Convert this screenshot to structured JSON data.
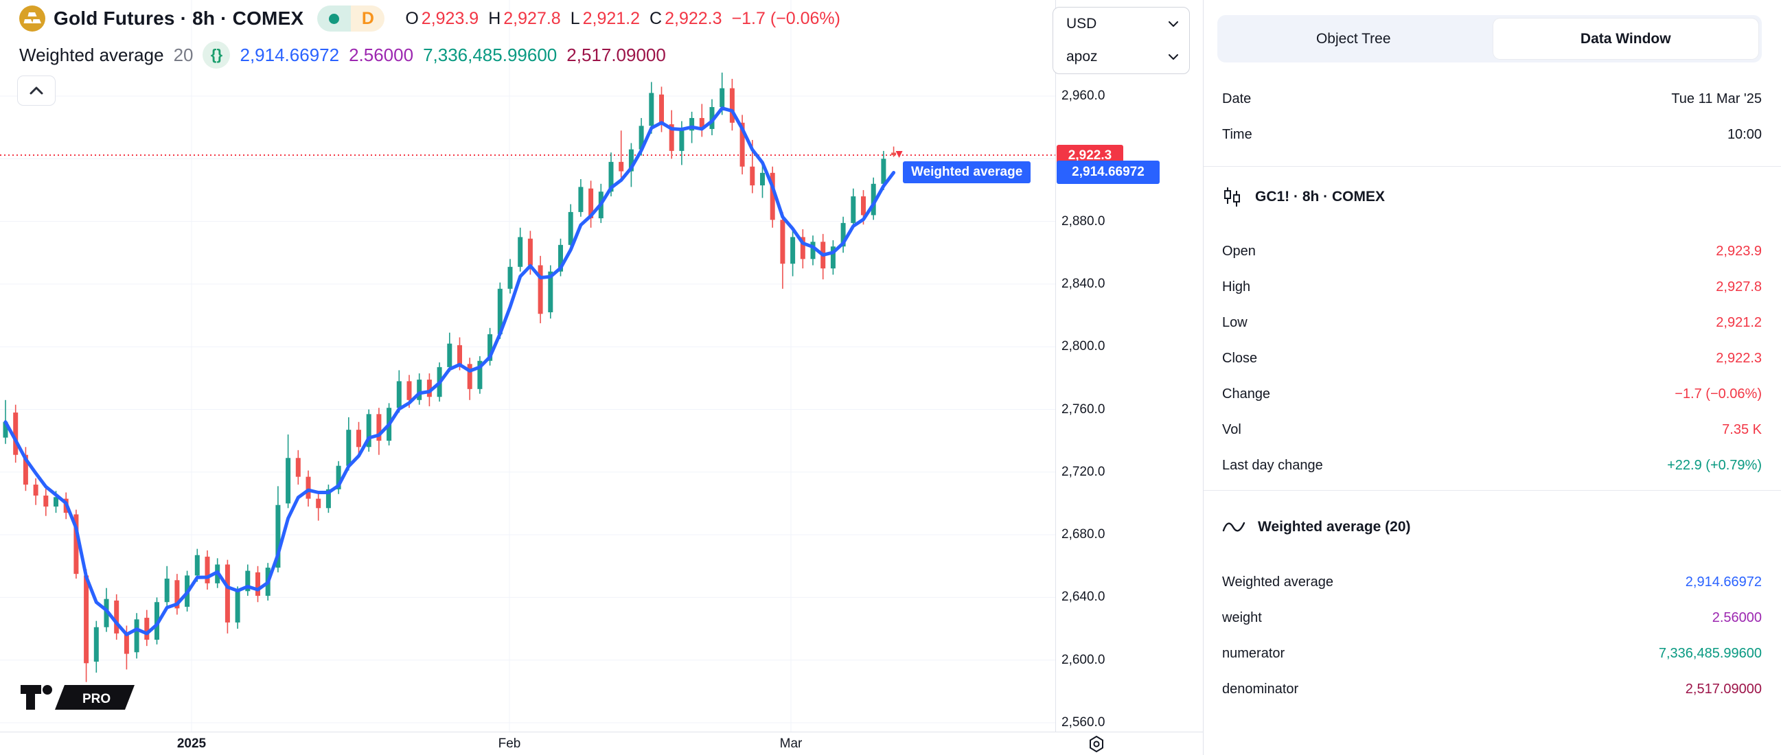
{
  "colors": {
    "candle_up": "#1f9d8b",
    "candle_down": "#ef5350",
    "line_blue": "#2962ff",
    "text_red": "#f23645",
    "text_green": "#089981",
    "text_purple": "#9c27b0",
    "text_maroon": "#9c1348",
    "text_dark": "#131722",
    "text_gray": "#787b86",
    "grid": "#f0f3fa",
    "border": "#e0e3eb",
    "badge_dot_teal": "#149980",
    "badge_d_orange": "#f7941d",
    "logo_gold": "#d9a127"
  },
  "legend": {
    "symbol_title": "Gold Futures · 8h · COMEX",
    "interval_badge": "D",
    "ohlc": [
      {
        "label": "O",
        "value": "2,923.9"
      },
      {
        "label": "H",
        "value": "2,927.8"
      },
      {
        "label": "L",
        "value": "2,921.2"
      },
      {
        "label": "C",
        "value": "2,922.3"
      }
    ],
    "change": "−1.7 (−0.06%)",
    "indicator_name": "Weighted average",
    "indicator_param": "20",
    "indicator_icon": "{}",
    "indicator_values": [
      {
        "value": "2,914.66972",
        "clr": "blue"
      },
      {
        "value": "2.56000",
        "clr": "purple"
      },
      {
        "value": "7,336,485.99600",
        "clr": "green"
      },
      {
        "value": "2,517.09000",
        "clr": "maroon"
      }
    ]
  },
  "currency_selectors": [
    {
      "value": "USD"
    },
    {
      "value": "apoz"
    }
  ],
  "wma_tag_label": "Weighted average",
  "price_tags": {
    "last_price": "2,922.3",
    "indicator_price": "2,914.66972"
  },
  "watermark": {
    "pro_label": "PRO"
  },
  "panel": {
    "tabs": [
      {
        "label": "Object Tree"
      },
      {
        "label": "Data Window"
      }
    ],
    "active_tab": "Data Window",
    "info_rows": [
      {
        "label": "Date",
        "value": "Tue 11 Mar '25",
        "clr": "dark"
      },
      {
        "label": "Time",
        "value": "10:00",
        "clr": "dark"
      }
    ],
    "symbol_section": {
      "title": "GC1! · 8h · COMEX",
      "rows": [
        {
          "label": "Open",
          "value": "2,923.9",
          "clr": "red"
        },
        {
          "label": "High",
          "value": "2,927.8",
          "clr": "red"
        },
        {
          "label": "Low",
          "value": "2,921.2",
          "clr": "red"
        },
        {
          "label": "Close",
          "value": "2,922.3",
          "clr": "red"
        },
        {
          "label": "Change",
          "value": "−1.7 (−0.06%)",
          "clr": "red"
        },
        {
          "label": "Vol",
          "value": "7.35 K",
          "clr": "red"
        },
        {
          "label": "Last day change",
          "value": "+22.9 (+0.79%)",
          "clr": "green"
        }
      ]
    },
    "indicator_section": {
      "title": "Weighted average (20)",
      "rows": [
        {
          "label": "Weighted average",
          "value": "2,914.66972",
          "clr": "blue"
        },
        {
          "label": "weight",
          "value": "2.56000",
          "clr": "purple"
        },
        {
          "label": "numerator",
          "value": "7,336,485.99600",
          "clr": "green"
        },
        {
          "label": "denominator",
          "value": "2,517.09000",
          "clr": "maroon"
        }
      ]
    }
  },
  "chart_data": {
    "type": "candlestick",
    "title": "GC1! Gold Futures · 8h · COMEX with Weighted average (20) overlay",
    "ylim": [
      2556,
      2980
    ],
    "y_ticks": [
      2960,
      2920,
      2880,
      2840,
      2800,
      2760,
      2720,
      2680,
      2640,
      2600,
      2560
    ],
    "y_tick_labels": [
      "2,960.0",
      "2,920.0",
      "2,880.0",
      "2,840.0",
      "2,800.0",
      "2,760.0",
      "2,720.0",
      "2,680.0",
      "2,640.0",
      "2,600.0",
      "2,560.0"
    ],
    "x_ticks": [
      {
        "text": "2025",
        "x": 279,
        "bold": true
      },
      {
        "text": "Feb",
        "x": 742,
        "bold": false
      },
      {
        "text": "Mar",
        "x": 1152,
        "bold": false
      }
    ],
    "last_price": 2922.3,
    "indicator": {
      "name": "Weighted average",
      "length": 20,
      "last_value": 2914.66972,
      "draw_window": 5
    },
    "candles": [
      [
        2742,
        2766,
        2738,
        2752
      ],
      [
        2758,
        2763,
        2726,
        2731
      ],
      [
        2731,
        2736,
        2708,
        2712
      ],
      [
        2712,
        2716,
        2699,
        2705
      ],
      [
        2705,
        2710,
        2692,
        2698
      ],
      [
        2698,
        2708,
        2694,
        2704
      ],
      [
        2703,
        2707,
        2690,
        2694
      ],
      [
        2693,
        2696,
        2652,
        2655
      ],
      [
        2654,
        2658,
        2586,
        2598
      ],
      [
        2599,
        2625,
        2592,
        2621
      ],
      [
        2621,
        2646,
        2618,
        2639
      ],
      [
        2638,
        2642,
        2613,
        2617
      ],
      [
        2617,
        2622,
        2594,
        2604
      ],
      [
        2605,
        2630,
        2601,
        2626
      ],
      [
        2627,
        2632,
        2609,
        2613
      ],
      [
        2613,
        2640,
        2610,
        2637
      ],
      [
        2637,
        2660,
        2634,
        2652
      ],
      [
        2651,
        2655,
        2629,
        2633
      ],
      [
        2634,
        2657,
        2631,
        2654
      ],
      [
        2654,
        2671,
        2650,
        2667
      ],
      [
        2666,
        2670,
        2645,
        2649
      ],
      [
        2649,
        2665,
        2646,
        2661
      ],
      [
        2661,
        2664,
        2617,
        2624
      ],
      [
        2624,
        2647,
        2620,
        2644
      ],
      [
        2644,
        2661,
        2641,
        2657
      ],
      [
        2656,
        2660,
        2637,
        2641
      ],
      [
        2641,
        2662,
        2638,
        2659
      ],
      [
        2659,
        2711,
        2656,
        2699
      ],
      [
        2700,
        2744,
        2697,
        2729
      ],
      [
        2729,
        2734,
        2712,
        2717
      ],
      [
        2717,
        2721,
        2698,
        2703
      ],
      [
        2703,
        2707,
        2689,
        2697
      ],
      [
        2697,
        2712,
        2694,
        2709
      ],
      [
        2709,
        2727,
        2706,
        2724
      ],
      [
        2724,
        2755,
        2721,
        2747
      ],
      [
        2747,
        2752,
        2731,
        2736
      ],
      [
        2736,
        2760,
        2733,
        2757
      ],
      [
        2757,
        2761,
        2731,
        2740
      ],
      [
        2740,
        2764,
        2737,
        2761
      ],
      [
        2761,
        2785,
        2758,
        2778
      ],
      [
        2778,
        2782,
        2761,
        2766
      ],
      [
        2766,
        2783,
        2763,
        2779
      ],
      [
        2779,
        2783,
        2762,
        2768
      ],
      [
        2768,
        2790,
        2765,
        2787
      ],
      [
        2787,
        2809,
        2784,
        2802
      ],
      [
        2801,
        2806,
        2785,
        2789
      ],
      [
        2789,
        2793,
        2766,
        2773
      ],
      [
        2773,
        2794,
        2770,
        2791
      ],
      [
        2791,
        2812,
        2788,
        2808
      ],
      [
        2808,
        2841,
        2805,
        2837
      ],
      [
        2837,
        2856,
        2834,
        2851
      ],
      [
        2851,
        2876,
        2848,
        2870
      ],
      [
        2869,
        2874,
        2846,
        2852
      ],
      [
        2852,
        2858,
        2815,
        2821
      ],
      [
        2822,
        2852,
        2818,
        2848
      ],
      [
        2848,
        2869,
        2845,
        2865
      ],
      [
        2865,
        2891,
        2862,
        2886
      ],
      [
        2886,
        2907,
        2883,
        2902
      ],
      [
        2901,
        2906,
        2876,
        2882
      ],
      [
        2882,
        2904,
        2879,
        2899
      ],
      [
        2899,
        2924,
        2896,
        2918
      ],
      [
        2918,
        2938,
        2908,
        2912
      ],
      [
        2912,
        2930,
        2902,
        2926
      ],
      [
        2926,
        2946,
        2922,
        2941
      ],
      [
        2941,
        2969,
        2936,
        2962
      ],
      [
        2961,
        2966,
        2937,
        2942
      ],
      [
        2942,
        2951,
        2920,
        2925
      ],
      [
        2925,
        2944,
        2916,
        2938
      ],
      [
        2938,
        2950,
        2930,
        2946
      ],
      [
        2946,
        2955,
        2934,
        2939
      ],
      [
        2939,
        2958,
        2935,
        2953
      ],
      [
        2953,
        2975,
        2948,
        2965
      ],
      [
        2965,
        2971,
        2938,
        2943
      ],
      [
        2943,
        2948,
        2910,
        2915
      ],
      [
        2915,
        2932,
        2898,
        2903
      ],
      [
        2903,
        2916,
        2895,
        2911
      ],
      [
        2911,
        2915,
        2876,
        2881
      ],
      [
        2881,
        2886,
        2837,
        2853
      ],
      [
        2853,
        2874,
        2845,
        2870
      ],
      [
        2870,
        2875,
        2850,
        2856
      ],
      [
        2856,
        2871,
        2852,
        2867
      ],
      [
        2867,
        2872,
        2843,
        2850
      ],
      [
        2850,
        2868,
        2846,
        2864
      ],
      [
        2864,
        2883,
        2860,
        2879
      ],
      [
        2879,
        2901,
        2876,
        2896
      ],
      [
        2896,
        2900,
        2878,
        2884
      ],
      [
        2884,
        2908,
        2881,
        2904
      ],
      [
        2904,
        2925,
        2900,
        2920
      ],
      [
        2923.9,
        2927.8,
        2921.2,
        2922.3
      ]
    ]
  }
}
